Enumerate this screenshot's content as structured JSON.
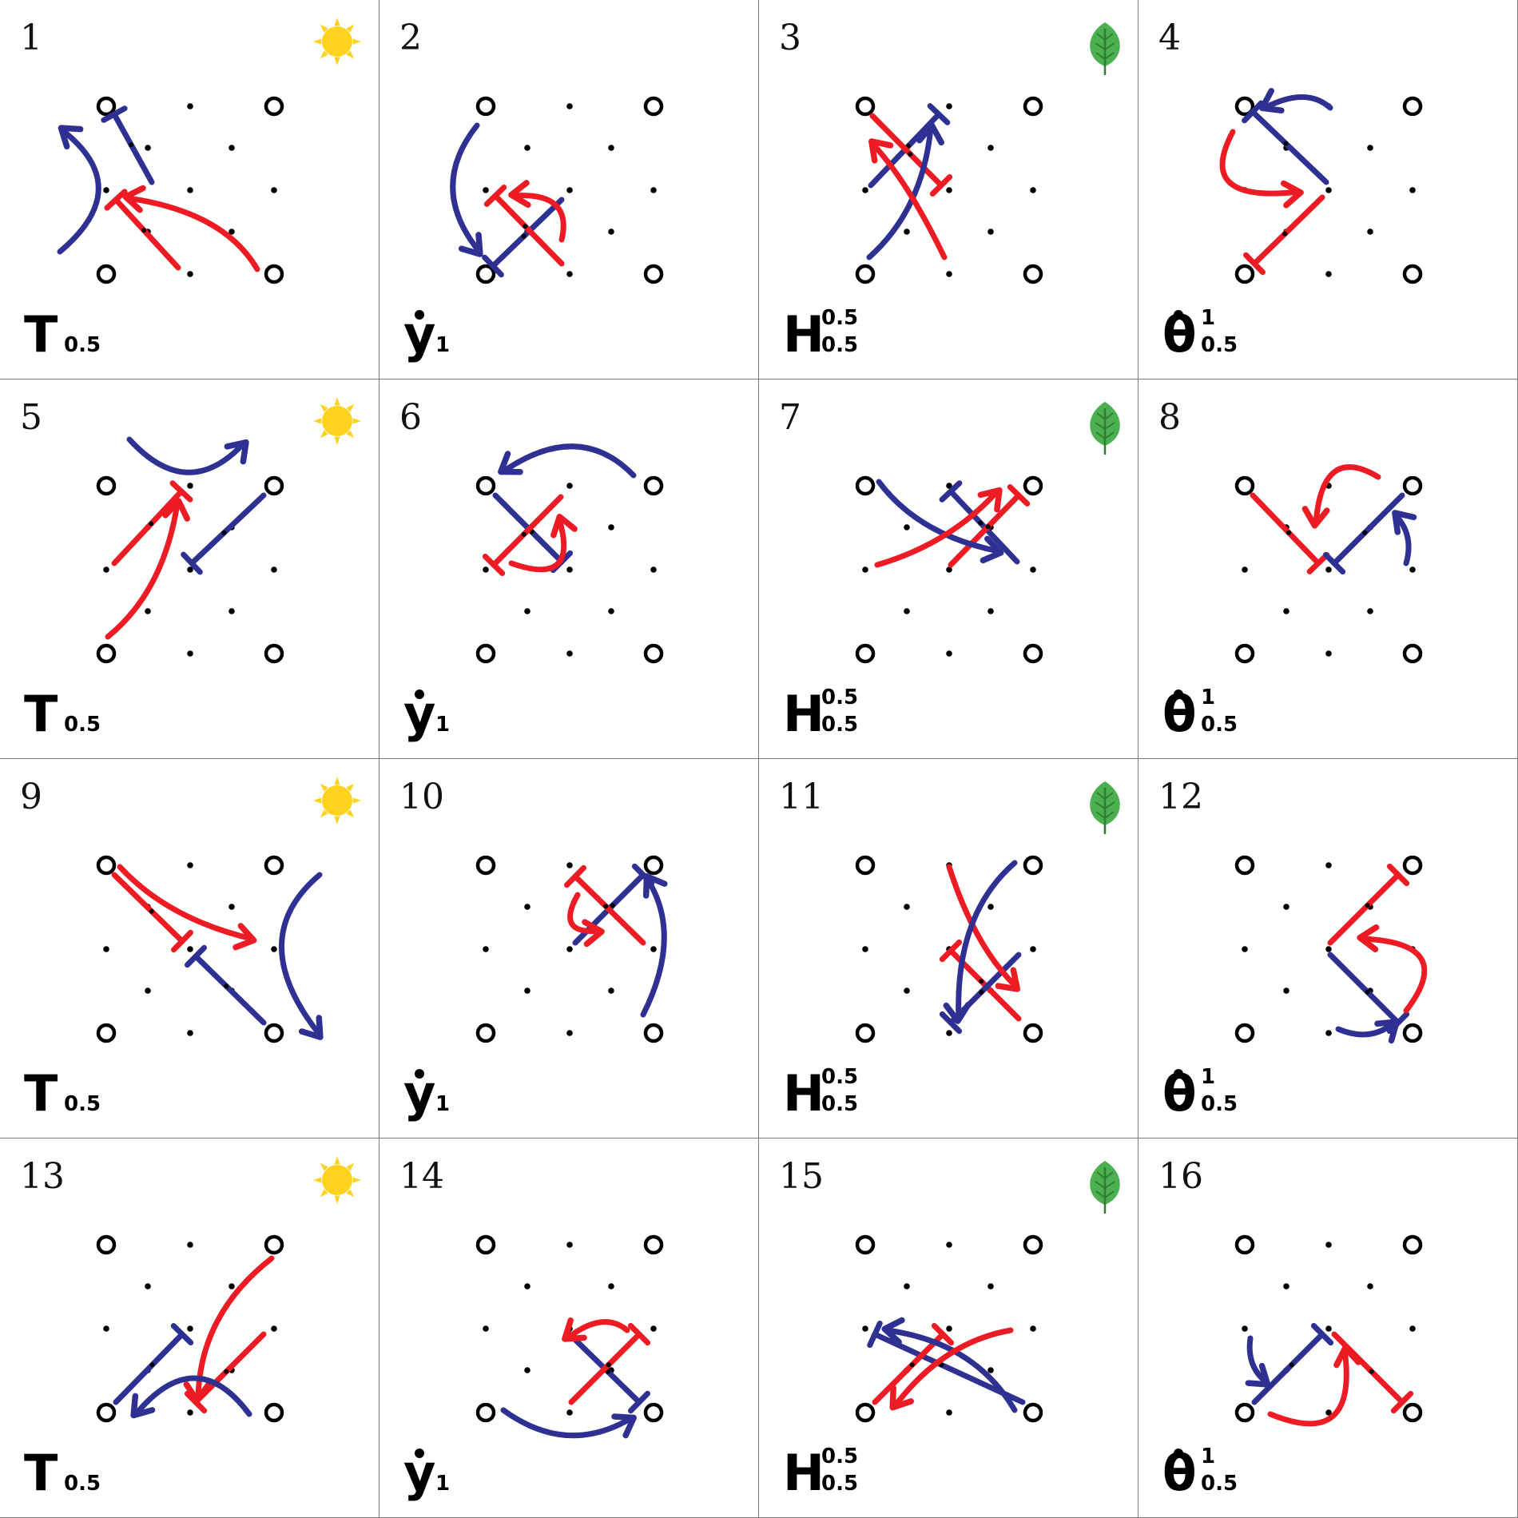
{
  "colors": {
    "blue": "#2e3192",
    "red": "#ed1c24",
    "sun": "#ffd21f",
    "leaf": "#4caf50",
    "leaf_dark": "#2e7d32",
    "border": "#7a7a7a"
  },
  "cells": [
    {
      "number": "1",
      "label": {
        "main": "T",
        "sub": "0.5"
      },
      "icon": "sun-icon"
    },
    {
      "number": "2",
      "label": {
        "main": "y",
        "dot": true,
        "sub": "1"
      },
      "icon": null
    },
    {
      "number": "3",
      "label": {
        "main": "H",
        "sup": "0.5",
        "sub": "0.5"
      },
      "icon": "leaf-icon"
    },
    {
      "number": "4",
      "label": {
        "main": "θ",
        "dot": true,
        "sup": "1",
        "sub": "0.5"
      },
      "icon": null
    },
    {
      "number": "5",
      "label": {
        "main": "T",
        "sub": "0.5"
      },
      "icon": "sun-icon"
    },
    {
      "number": "6",
      "label": {
        "main": "y",
        "dot": true,
        "sub": "1"
      },
      "icon": null
    },
    {
      "number": "7",
      "label": {
        "main": "H",
        "sup": "0.5",
        "sub": "0.5"
      },
      "icon": "leaf-icon"
    },
    {
      "number": "8",
      "label": {
        "main": "θ",
        "dot": true,
        "sup": "1",
        "sub": "0.5"
      },
      "icon": null
    },
    {
      "number": "9",
      "label": {
        "main": "T",
        "sub": "0.5"
      },
      "icon": "sun-icon"
    },
    {
      "number": "10",
      "label": {
        "main": "y",
        "dot": true,
        "sub": "1"
      },
      "icon": null
    },
    {
      "number": "11",
      "label": {
        "main": "H",
        "sup": "0.5",
        "sub": "0.5"
      },
      "icon": "leaf-icon"
    },
    {
      "number": "12",
      "label": {
        "main": "θ",
        "dot": true,
        "sup": "1",
        "sub": "0.5"
      },
      "icon": null
    },
    {
      "number": "13",
      "label": {
        "main": "T",
        "sub": "0.5"
      },
      "icon": "sun-icon"
    },
    {
      "number": "14",
      "label": {
        "main": "y",
        "dot": true,
        "sub": "1"
      },
      "icon": null
    },
    {
      "number": "15",
      "label": {
        "main": "H",
        "sup": "0.5",
        "sub": "0.5"
      },
      "icon": "leaf-icon"
    },
    {
      "number": "16",
      "label": {
        "main": "θ",
        "dot": true,
        "sup": "1",
        "sub": "0.5"
      },
      "icon": null
    }
  ]
}
